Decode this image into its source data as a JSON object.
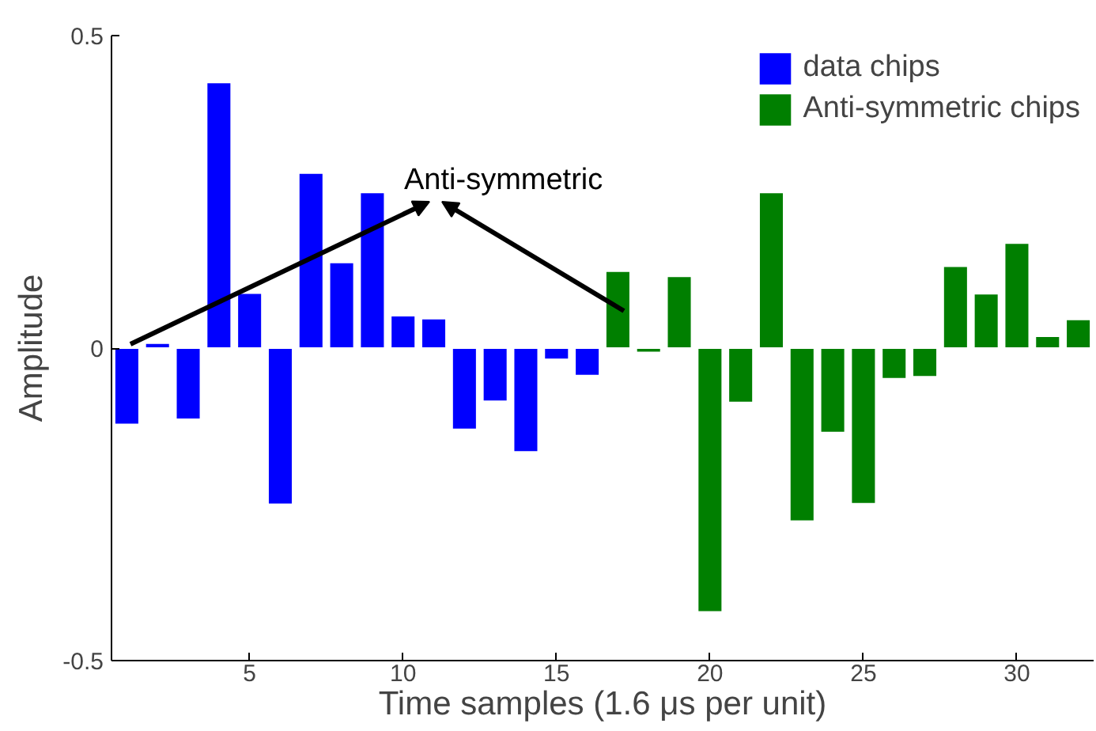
{
  "chart_data": {
    "type": "bar",
    "xlabel": "Time samples (1.6 μs per unit)",
    "ylabel": "Amplitude",
    "xlim": [
      0.5,
      32.5
    ],
    "ylim": [
      -0.5,
      0.5
    ],
    "xticks": [
      5,
      10,
      15,
      20,
      25,
      30
    ],
    "yticks": [
      -0.5,
      0,
      0.5
    ],
    "series": [
      {
        "name": "data chips",
        "color": "#0000ff",
        "x": [
          1,
          2,
          3,
          4,
          5,
          6,
          7,
          8,
          9,
          10,
          11,
          12,
          13,
          14,
          15,
          16
        ],
        "values": [
          -0.122,
          0.008,
          -0.114,
          0.425,
          0.088,
          -0.25,
          0.28,
          0.137,
          0.249,
          0.052,
          0.047,
          -0.13,
          -0.085,
          -0.166,
          -0.018,
          -0.044
        ]
      },
      {
        "name": "Anti-symmetric chips",
        "color": "#007f00",
        "x": [
          17,
          18,
          19,
          20,
          21,
          22,
          23,
          24,
          25,
          26,
          27,
          28,
          29,
          30,
          31,
          32
        ],
        "values": [
          0.123,
          -0.007,
          0.115,
          -0.422,
          -0.087,
          0.249,
          -0.277,
          -0.135,
          -0.249,
          -0.049,
          -0.046,
          0.131,
          0.087,
          0.168,
          0.019,
          0.046
        ]
      }
    ],
    "annotations": [
      "Anti-symmetric"
    ],
    "legend": "top right",
    "grid": false
  }
}
